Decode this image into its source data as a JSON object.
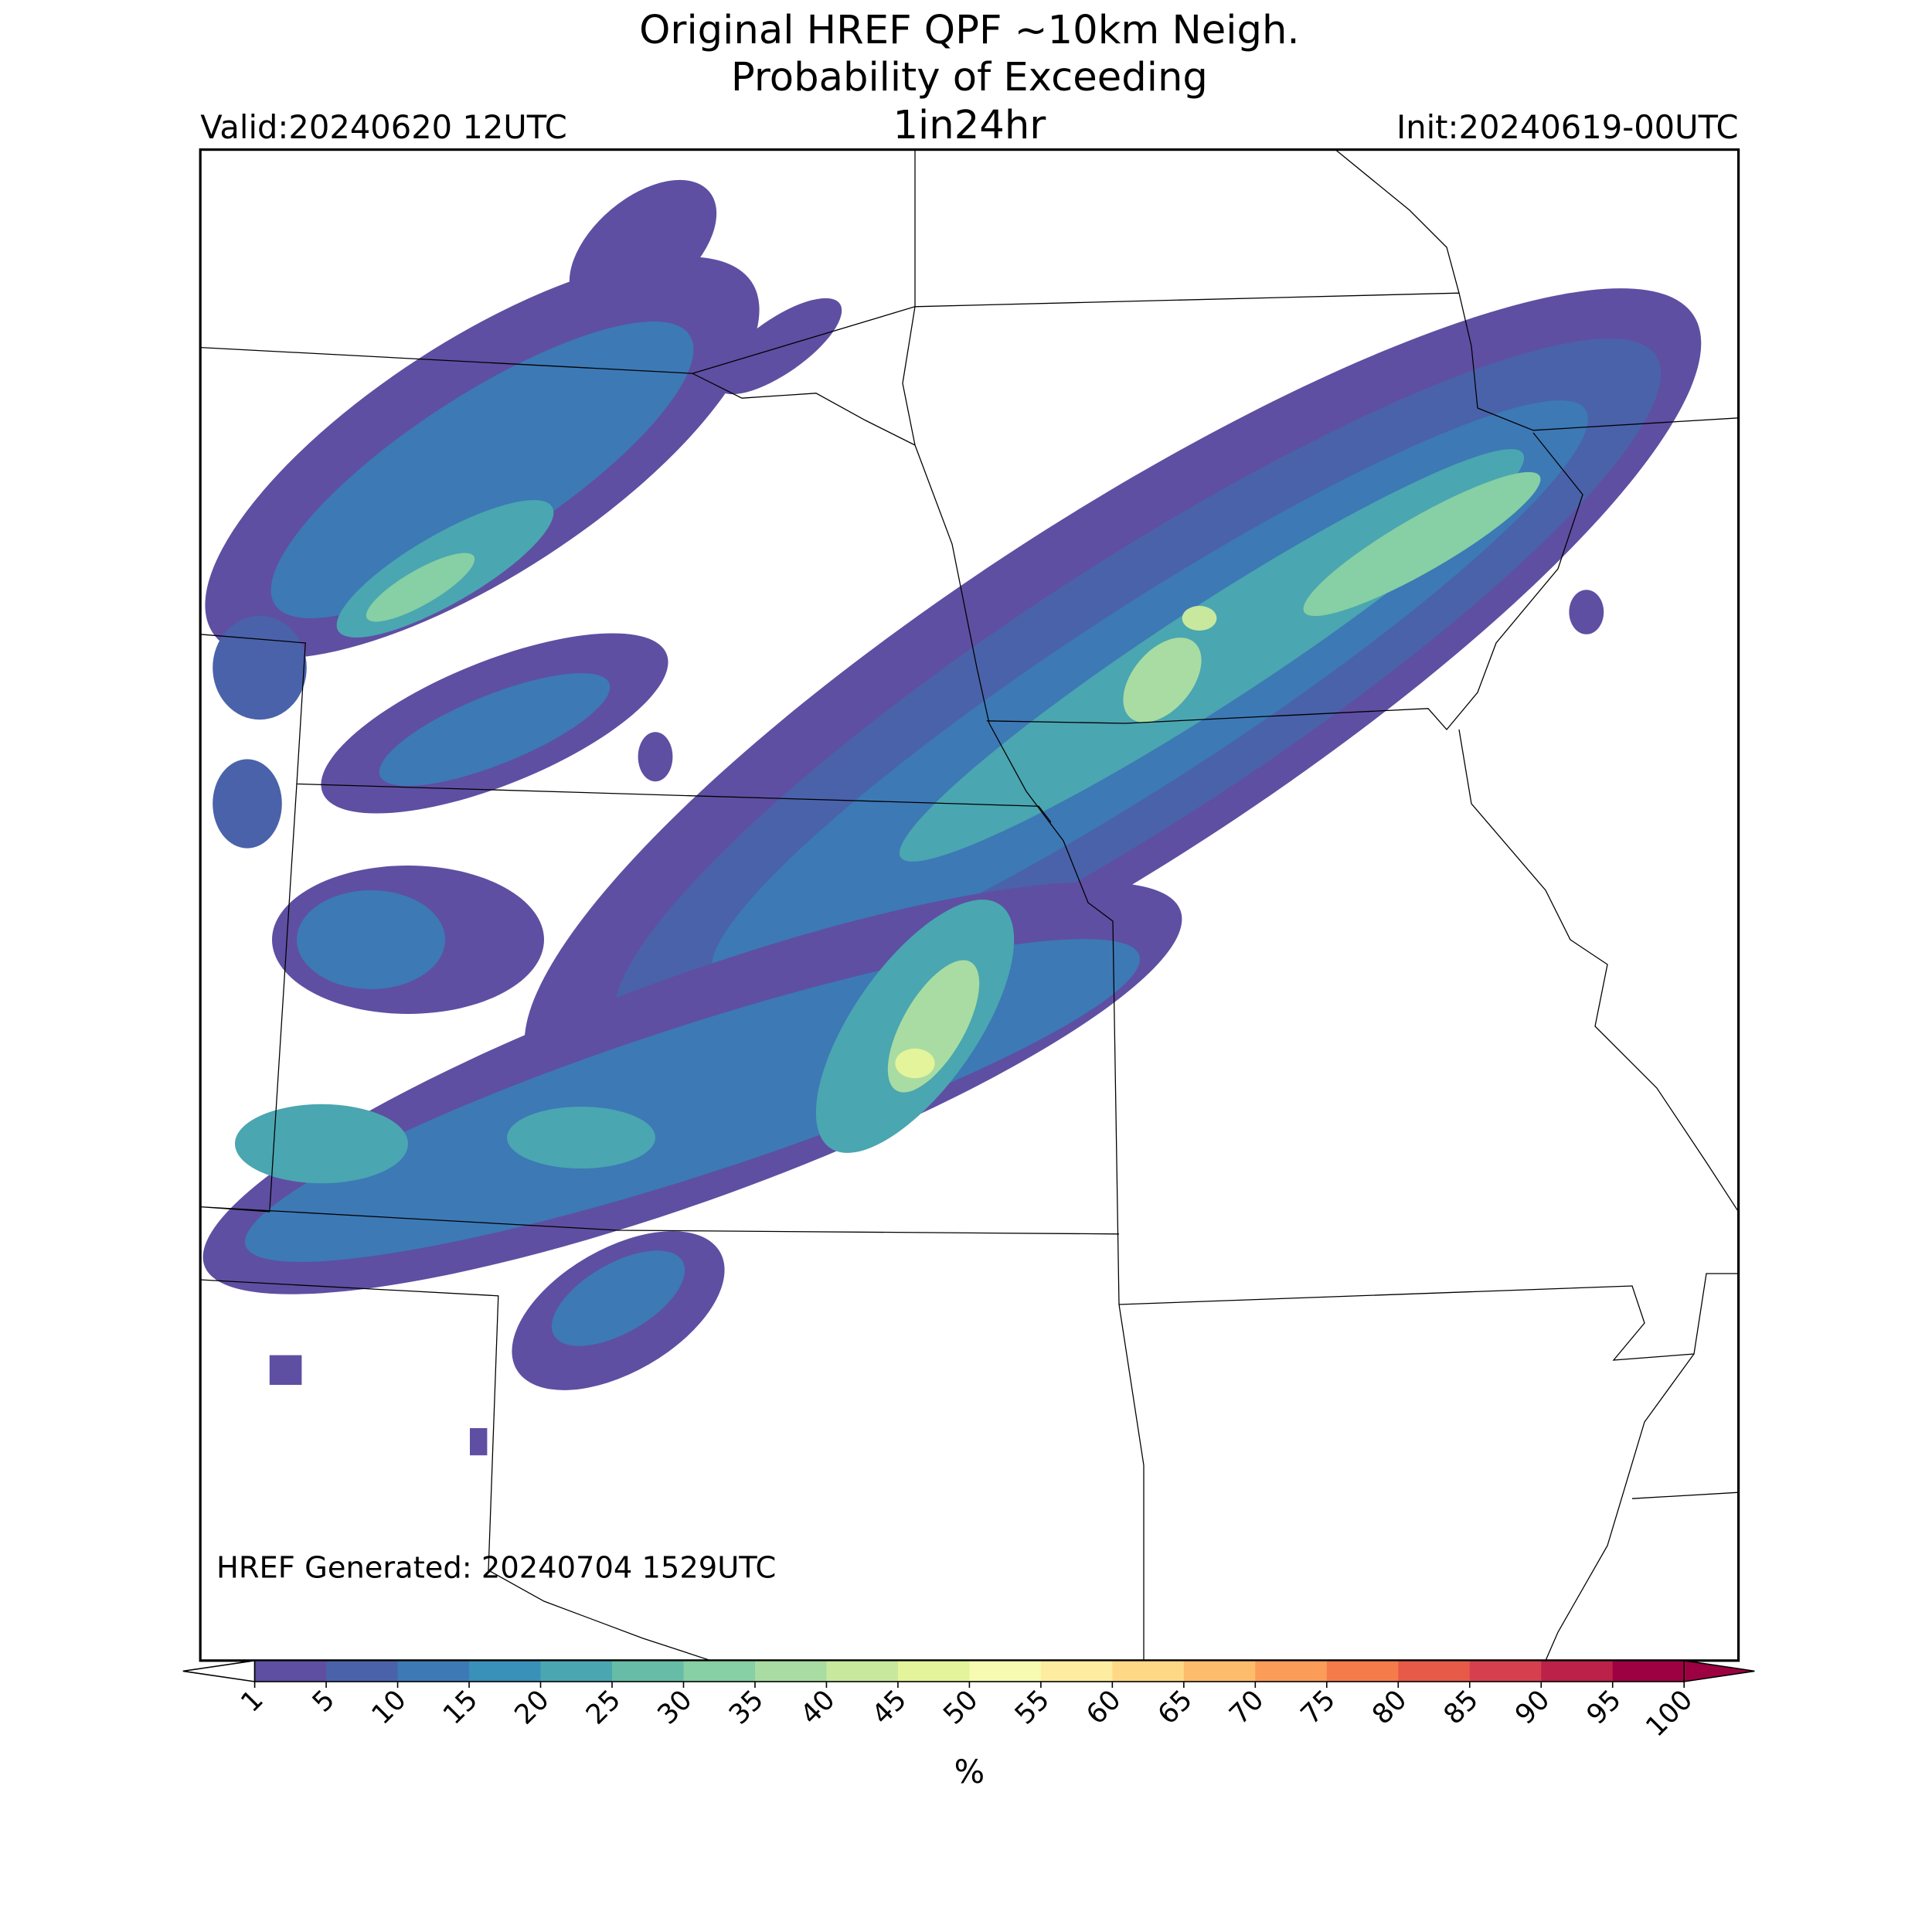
{
  "chart_data": {
    "type": "map",
    "title": [
      "Original HREF QPF ~10km Neigh.",
      "Probability of Exceeding",
      "1in24hr"
    ],
    "valid": "Valid:20240620 12UTC",
    "init": "Init:20240619-00UTC",
    "footnote": "HREF Generated: 20240704 1529UTC",
    "colorbar": {
      "label": "%",
      "ticks": [
        1,
        5,
        10,
        15,
        20,
        25,
        30,
        35,
        40,
        45,
        50,
        55,
        60,
        65,
        70,
        75,
        80,
        85,
        90,
        95,
        100
      ],
      "colors": [
        "#5e4fa2",
        "#4a62aa",
        "#3d79b5",
        "#3990b8",
        "#4aa6b1",
        "#66bca6",
        "#87cfa4",
        "#a9dca2",
        "#c8e89e",
        "#e4f49a",
        "#f7fbb2",
        "#feeda1",
        "#fed884",
        "#fdbc6c",
        "#fb9c59",
        "#f67b4a",
        "#e75a47",
        "#d6404e",
        "#bb2149",
        "#9e0142"
      ]
    }
  }
}
